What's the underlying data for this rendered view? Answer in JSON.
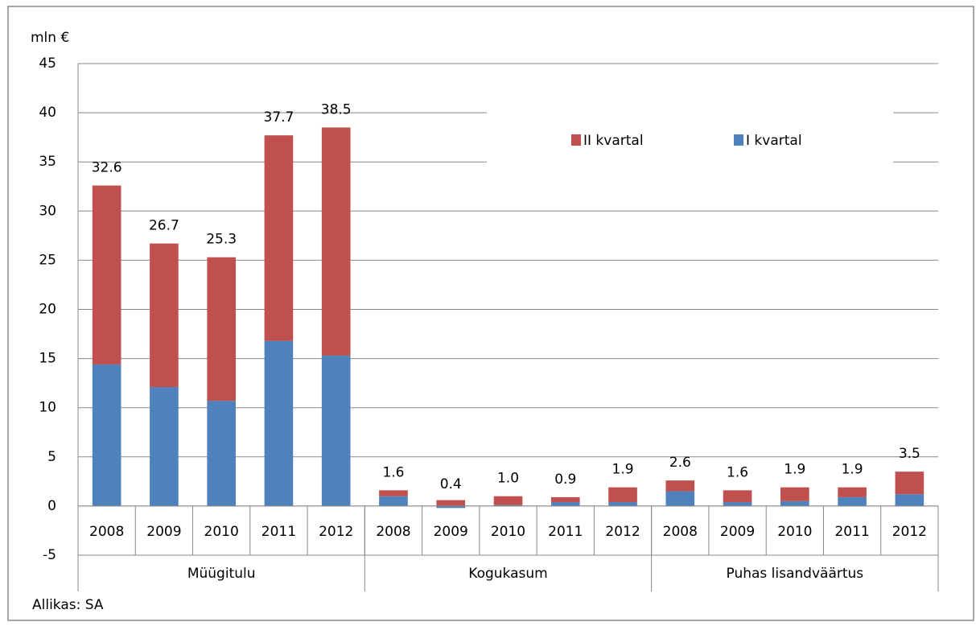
{
  "chart_data": {
    "type": "stacked_bar",
    "y_axis_label": "mln €",
    "source": "Allikas: SA",
    "groups": [
      "Müügitulu",
      "Kogukasum",
      "Puhas lisandväärtus"
    ],
    "categories": [
      "2008",
      "2009",
      "2010",
      "2011",
      "2012",
      "2008",
      "2009",
      "2010",
      "2011",
      "2012",
      "2008",
      "2009",
      "2010",
      "2011",
      "2012"
    ],
    "series": [
      {
        "name": "I kvartal",
        "color": "#4f81bd",
        "values": [
          14.4,
          12.1,
          10.7,
          16.8,
          15.3,
          1.0,
          -0.2,
          0.1,
          0.4,
          0.4,
          1.5,
          0.4,
          0.5,
          0.9,
          1.2
        ]
      },
      {
        "name": "II kvartal",
        "color": "#c0504d",
        "values": [
          18.2,
          14.6,
          14.6,
          20.9,
          23.2,
          0.6,
          0.6,
          0.9,
          0.5,
          1.5,
          1.1,
          1.2,
          1.4,
          1.0,
          2.3
        ]
      }
    ],
    "totals": [
      32.6,
      26.7,
      25.3,
      37.7,
      38.5,
      1.6,
      0.4,
      1.0,
      0.9,
      1.9,
      2.6,
      1.6,
      1.9,
      1.9,
      3.5
    ],
    "total_labels": [
      "32.6",
      "26.7",
      "25.3",
      "37.7",
      "38.5",
      "1.6",
      "0.4",
      "1.0",
      "0.9",
      "1.9",
      "2.6",
      "1.6",
      "1.9",
      "1.9",
      "3.5"
    ],
    "ylim": [
      -5,
      45
    ],
    "yticks": [
      -5,
      0,
      5,
      10,
      15,
      20,
      25,
      30,
      35,
      40,
      45
    ],
    "grid": true
  }
}
